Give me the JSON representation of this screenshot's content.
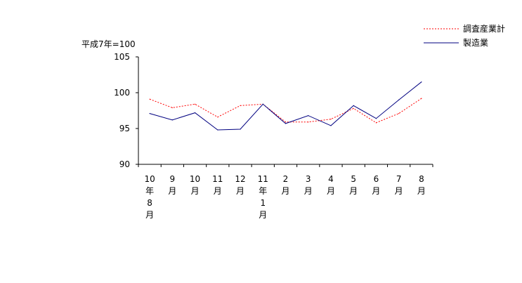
{
  "chart_data": {
    "type": "line",
    "unit_label": "平成7年=100",
    "ylim": [
      90,
      105
    ],
    "yticks": [
      90,
      95,
      100,
      105
    ],
    "categories": [
      [
        "10",
        "年",
        "8",
        "月"
      ],
      [
        "9",
        "月"
      ],
      [
        "10",
        "月"
      ],
      [
        "11",
        "月"
      ],
      [
        "12",
        "月"
      ],
      [
        "11",
        "年",
        "1",
        "月"
      ],
      [
        "2",
        "月"
      ],
      [
        "3",
        "月"
      ],
      [
        "4",
        "月"
      ],
      [
        "5",
        "月"
      ],
      [
        "6",
        "月"
      ],
      [
        "7",
        "月"
      ],
      [
        "8",
        "月"
      ]
    ],
    "series": [
      {
        "name": "調査産業計",
        "color": "#ff0000",
        "style": "dotted",
        "values": [
          99.1,
          97.9,
          98.4,
          96.6,
          98.2,
          98.4,
          95.9,
          95.9,
          96.3,
          97.8,
          95.8,
          97.1,
          99.2
        ]
      },
      {
        "name": "製造業",
        "color": "#000080",
        "style": "solid",
        "values": [
          97.1,
          96.2,
          97.2,
          94.8,
          94.9,
          98.4,
          95.7,
          96.8,
          95.4,
          98.2,
          96.4,
          99.0,
          101.5
        ]
      }
    ],
    "grid": false,
    "legend_position": "top-right"
  }
}
